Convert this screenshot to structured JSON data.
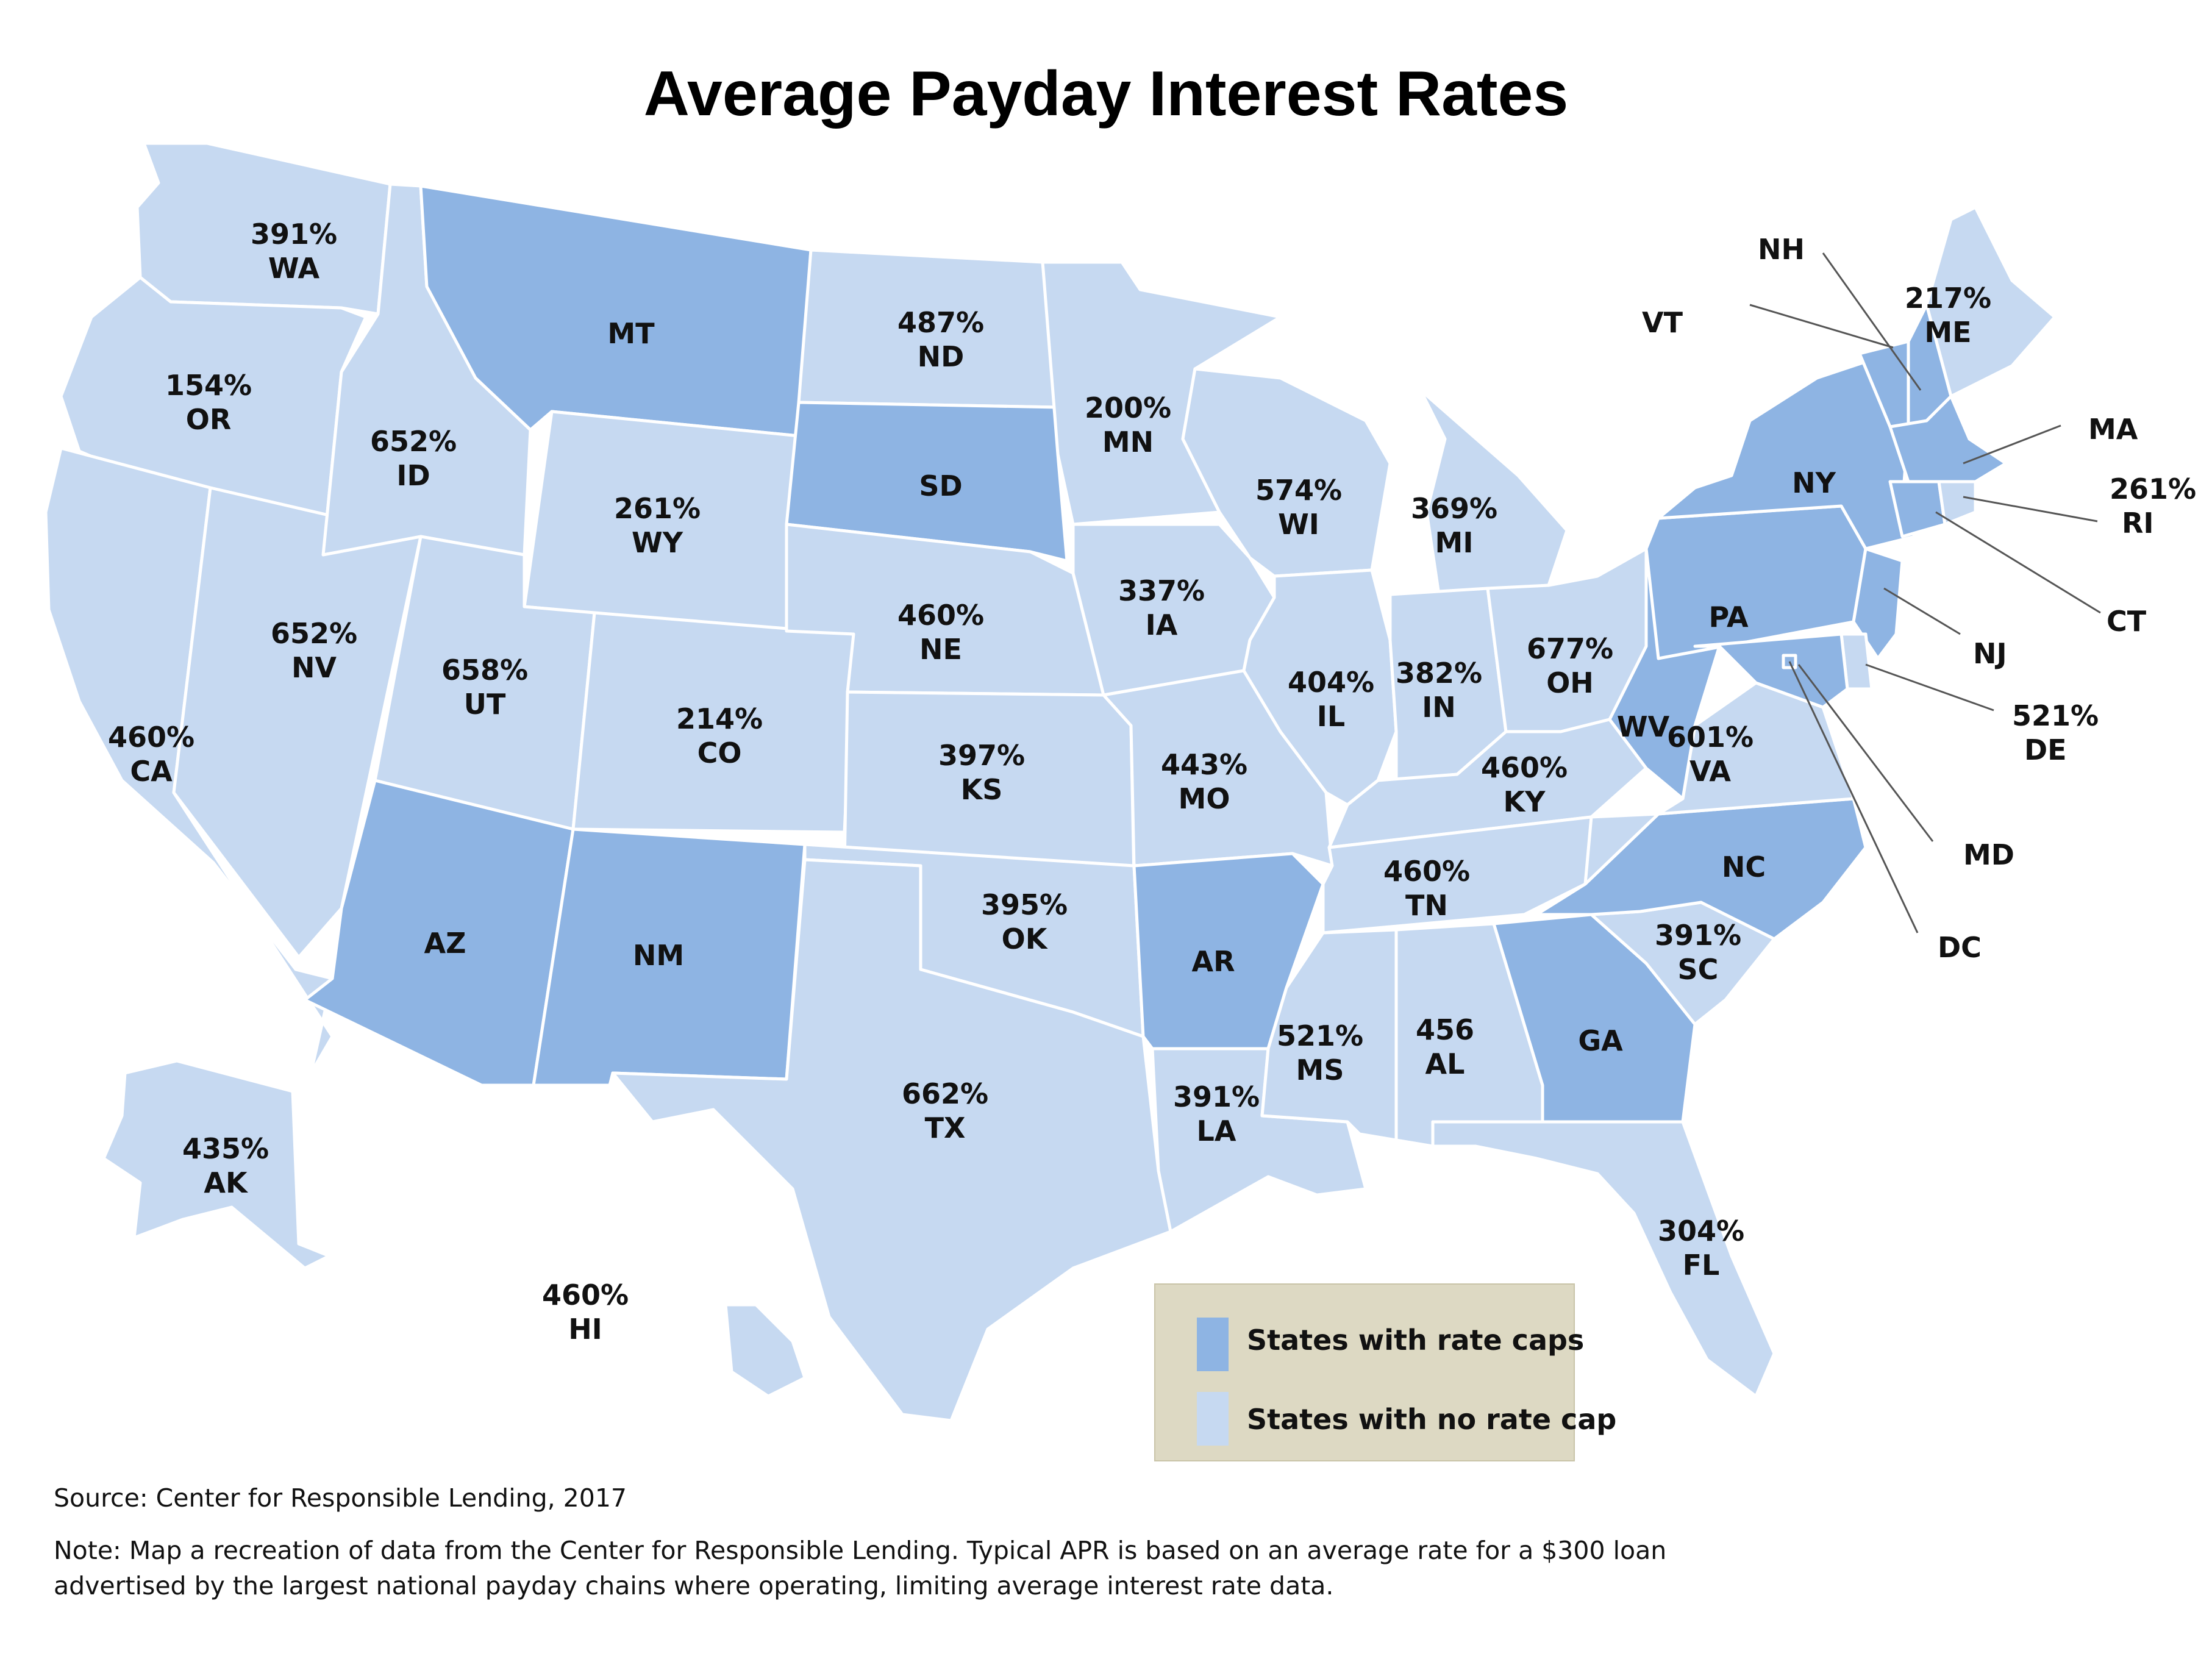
{
  "title": "Average Payday Interest Rates",
  "colors": {
    "rate_cap": "#8eb4e3",
    "no_rate_cap": "#c6d9f1",
    "legend_bg": "#ddd9c3",
    "border": "#ffffff"
  },
  "legend": {
    "rate_caps": "States with rate caps",
    "no_rate_cap": "States with no rate cap"
  },
  "states": {
    "WA": {
      "rate": "391%",
      "abbr": "WA",
      "capped": false
    },
    "OR": {
      "rate": "154%",
      "abbr": "OR",
      "capped": false
    },
    "CA": {
      "rate": "460%",
      "abbr": "CA",
      "capped": false
    },
    "NV": {
      "rate": "652%",
      "abbr": "NV",
      "capped": false
    },
    "ID": {
      "rate": "652%",
      "abbr": "ID",
      "capped": false
    },
    "MT": {
      "rate": "",
      "abbr": "MT",
      "capped": true
    },
    "WY": {
      "rate": "261%",
      "abbr": "WY",
      "capped": false
    },
    "UT": {
      "rate": "658%",
      "abbr": "UT",
      "capped": false
    },
    "AZ": {
      "rate": "",
      "abbr": "AZ",
      "capped": true
    },
    "CO": {
      "rate": "214%",
      "abbr": "CO",
      "capped": false
    },
    "NM": {
      "rate": "",
      "abbr": "NM",
      "capped": true
    },
    "ND": {
      "rate": "487%",
      "abbr": "ND",
      "capped": false
    },
    "SD": {
      "rate": "",
      "abbr": "SD",
      "capped": true
    },
    "NE": {
      "rate": "460%",
      "abbr": "NE",
      "capped": false
    },
    "KS": {
      "rate": "397%",
      "abbr": "KS",
      "capped": false
    },
    "OK": {
      "rate": "395%",
      "abbr": "OK",
      "capped": false
    },
    "TX": {
      "rate": "662%",
      "abbr": "TX",
      "capped": false
    },
    "MN": {
      "rate": "200%",
      "abbr": "MN",
      "capped": false
    },
    "IA": {
      "rate": "337%",
      "abbr": "IA",
      "capped": false
    },
    "MO": {
      "rate": "443%",
      "abbr": "MO",
      "capped": false
    },
    "AR": {
      "rate": "",
      "abbr": "AR",
      "capped": true
    },
    "LA": {
      "rate": "391%",
      "abbr": "LA",
      "capped": false
    },
    "WI": {
      "rate": "574%",
      "abbr": "WI",
      "capped": false
    },
    "IL": {
      "rate": "404%",
      "abbr": "IL",
      "capped": false
    },
    "MI": {
      "rate": "369%",
      "abbr": "MI",
      "capped": false
    },
    "IN": {
      "rate": "382%",
      "abbr": "IN",
      "capped": false
    },
    "OH": {
      "rate": "677%",
      "abbr": "OH",
      "capped": false
    },
    "KY": {
      "rate": "460%",
      "abbr": "KY",
      "capped": false
    },
    "TN": {
      "rate": "460%",
      "abbr": "TN",
      "capped": false
    },
    "MS": {
      "rate": "521%",
      "abbr": "MS",
      "capped": false
    },
    "AL": {
      "rate": "456",
      "abbr": "AL",
      "capped": false
    },
    "GA": {
      "rate": "",
      "abbr": "GA",
      "capped": true
    },
    "FL": {
      "rate": "304%",
      "abbr": "FL",
      "capped": false
    },
    "SC": {
      "rate": "391%",
      "abbr": "SC",
      "capped": false
    },
    "NC": {
      "rate": "",
      "abbr": "NC",
      "capped": true
    },
    "VA": {
      "rate": "601%",
      "abbr": "VA",
      "capped": false
    },
    "WV": {
      "rate": "",
      "abbr": "WV",
      "capped": true
    },
    "PA": {
      "rate": "",
      "abbr": "PA",
      "capped": true
    },
    "NY": {
      "rate": "",
      "abbr": "NY",
      "capped": true
    },
    "VT": {
      "rate": "",
      "abbr": "VT",
      "capped": true
    },
    "NH": {
      "rate": "",
      "abbr": "NH",
      "capped": true
    },
    "ME": {
      "rate": "217%",
      "abbr": "ME",
      "capped": false
    },
    "MA": {
      "rate": "",
      "abbr": "MA",
      "capped": true
    },
    "RI": {
      "rate": "261%",
      "abbr": "RI",
      "capped": false
    },
    "CT": {
      "rate": "",
      "abbr": "CT",
      "capped": true
    },
    "NJ": {
      "rate": "",
      "abbr": "NJ",
      "capped": true
    },
    "DE": {
      "rate": "521%",
      "abbr": "DE",
      "capped": false
    },
    "MD": {
      "rate": "",
      "abbr": "MD",
      "capped": true
    },
    "DC": {
      "rate": "",
      "abbr": "DC",
      "capped": true
    },
    "AK": {
      "rate": "435%",
      "abbr": "AK",
      "capped": false
    },
    "HI": {
      "rate": "460%",
      "abbr": "HI",
      "capped": false
    }
  },
  "footer": {
    "source": "Source: Center for Responsible Lending, 2017",
    "note_line1": "Note: Map a recreation of data from the Center for Responsible Lending. Typical APR is based on an average rate for a $300 loan",
    "note_line2": "advertised by the largest national payday chains where operating, limiting average interest rate data."
  }
}
